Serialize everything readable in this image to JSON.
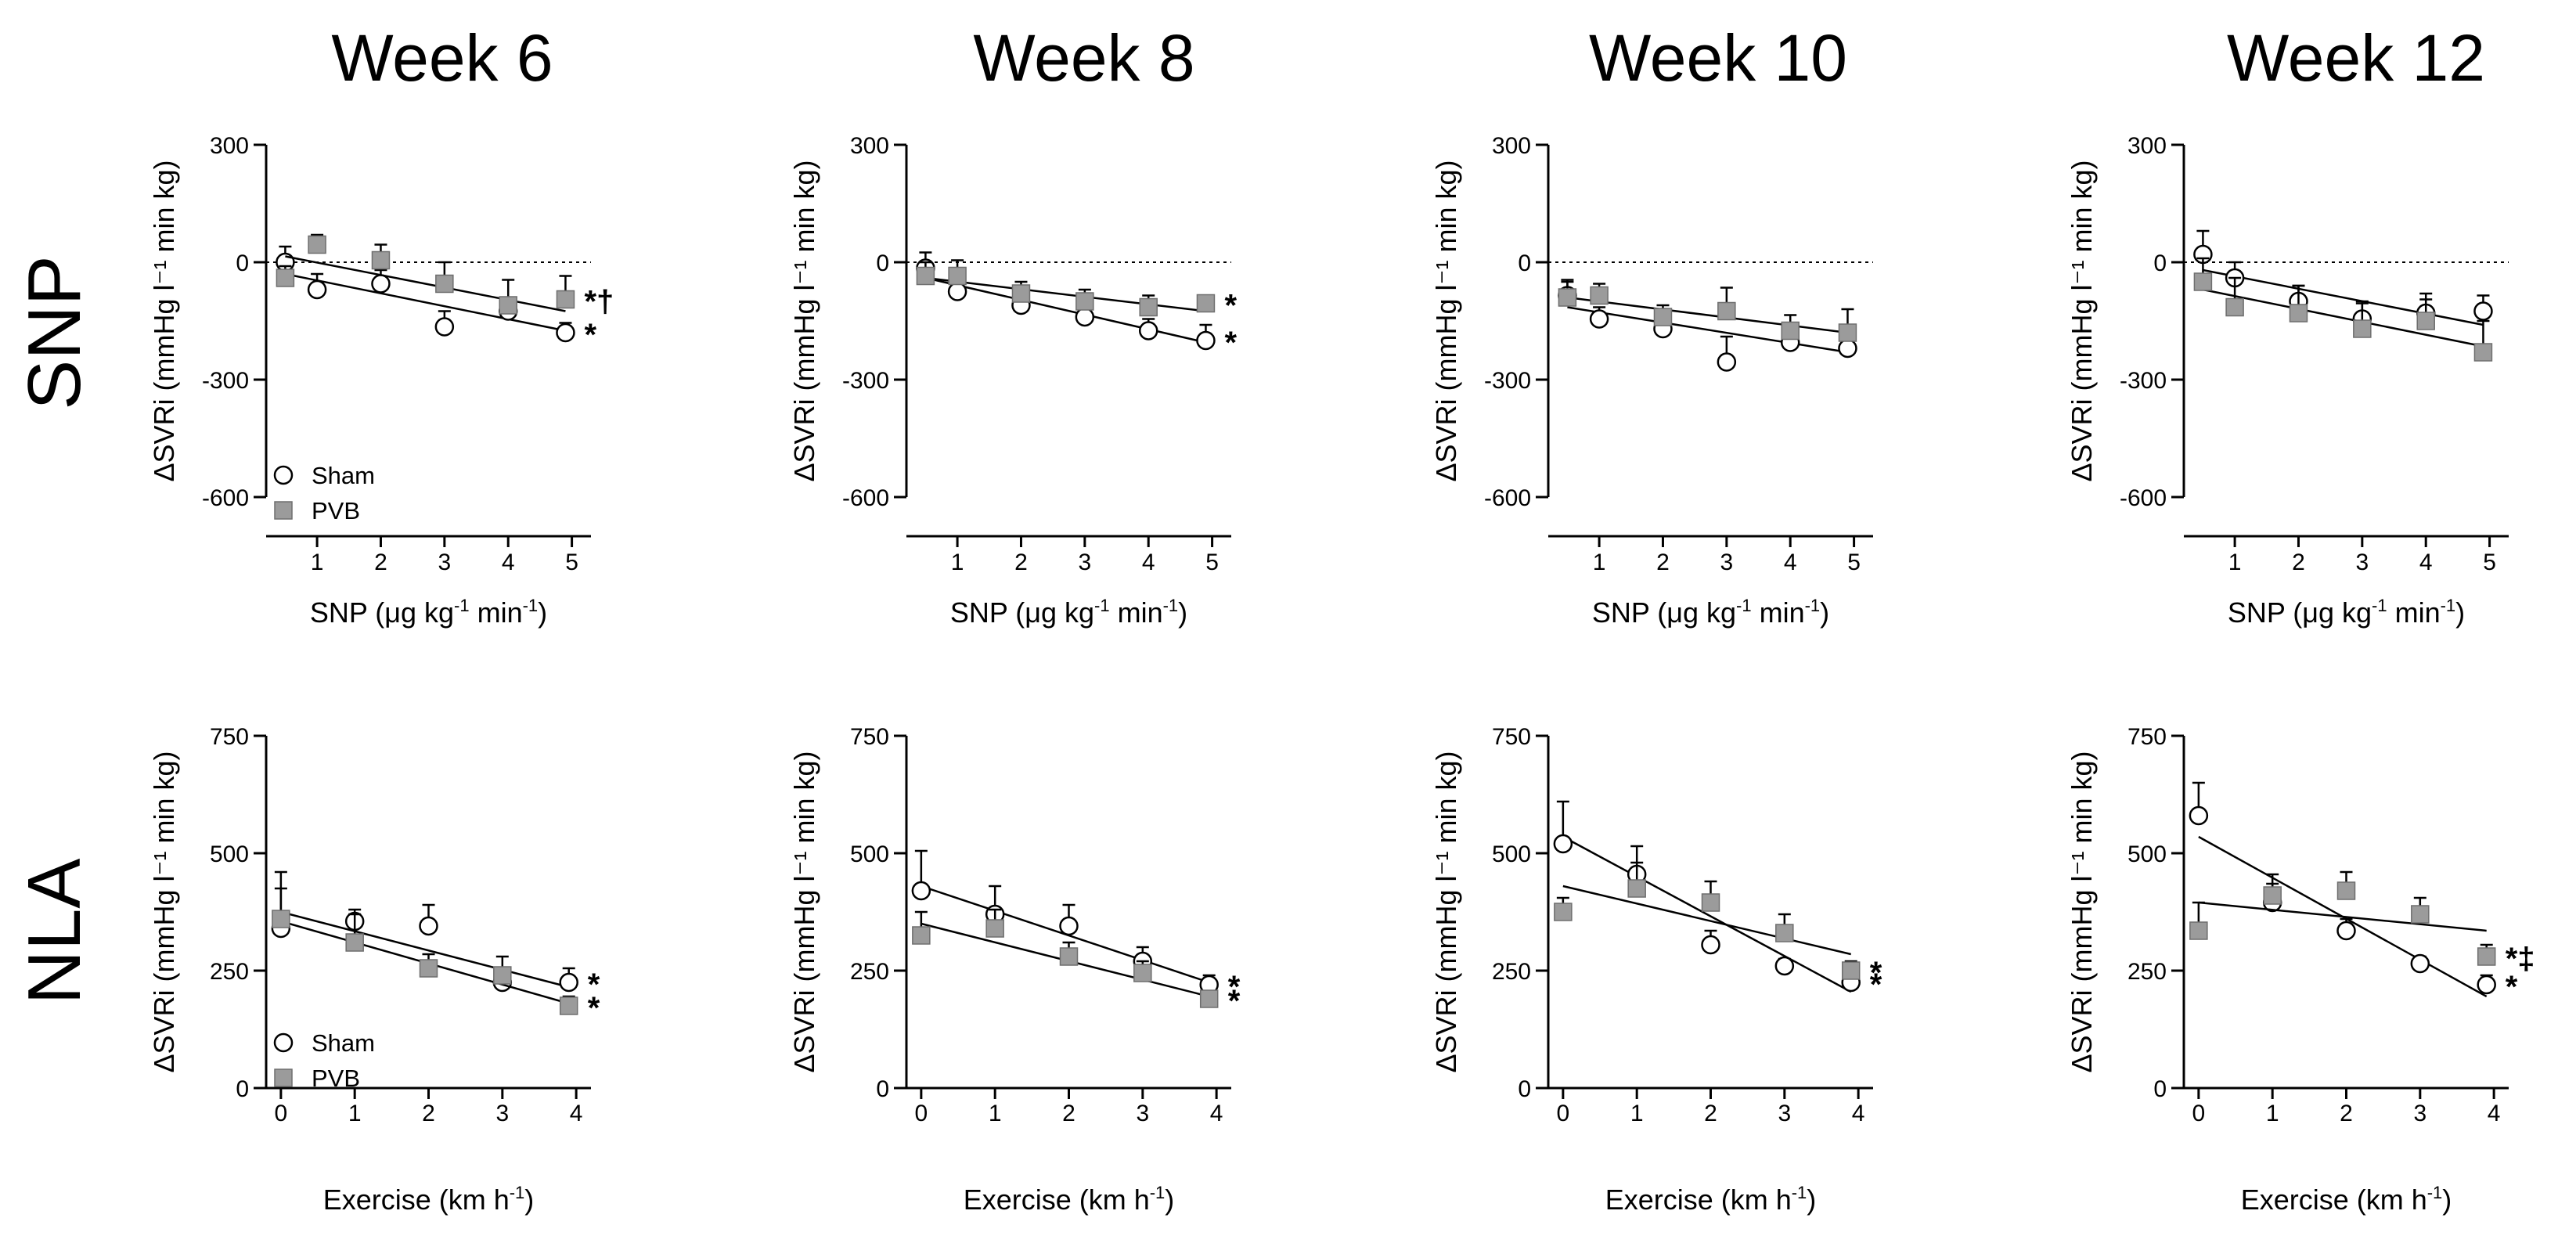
{
  "colors": {
    "sham_fill": "#ffffff",
    "pvb_fill": "#9b9b9b",
    "stroke": "#000000"
  },
  "series_names": [
    "Sham",
    "PVB"
  ],
  "columns": [
    {
      "title": "Week 6"
    },
    {
      "title": "Week 8"
    },
    {
      "title": "Week 10"
    },
    {
      "title": "Week 12"
    }
  ],
  "rows": [
    {
      "label": "SNP",
      "xlabel": {
        "pre": "SNP (",
        "mu": "μ",
        "mid": "g kg",
        "sup": "-1",
        "post": " min",
        "sup2": "-1",
        "end": ")"
      },
      "ylabel": "ΔSVRi (mmHg l⁻¹ min kg)",
      "x_ticks": [
        1,
        2,
        3,
        4,
        5
      ],
      "y_ticks": [
        300,
        0,
        -300,
        -600
      ],
      "xlim": [
        0.2,
        5.3
      ],
      "ylim": [
        -600,
        300
      ]
    },
    {
      "label": "NLA",
      "xlabel": {
        "pre": "Exercise (km h",
        "sup": "-1",
        "end": ")"
      },
      "ylabel": "ΔSVRi (mmHg l⁻¹ min kg)",
      "x_ticks": [
        0,
        1,
        2,
        3,
        4
      ],
      "y_ticks": [
        750,
        500,
        250,
        0
      ],
      "xlim": [
        -0.2,
        4.2
      ],
      "ylim": [
        0,
        750
      ]
    }
  ],
  "chart_data": [
    {
      "type": "scatter",
      "title": "Week 6",
      "row": "SNP",
      "xlabel": "SNP (μg kg-1 min-1)",
      "ylabel": "ΔSVRi (mmHg l-1 min kg)",
      "xlim": [
        0.2,
        5.3
      ],
      "ylim": [
        -600,
        300
      ],
      "reference_line_y": 0,
      "legend": [
        "Sham",
        "PVB"
      ],
      "series": [
        {
          "name": "Sham",
          "marker": "circle",
          "x": [
            0.5,
            1,
            2,
            3,
            4,
            4.9
          ],
          "y": [
            0,
            -70,
            -55,
            -165,
            -125,
            -180
          ],
          "err": [
            40,
            40,
            35,
            40,
            35,
            25
          ],
          "fit": {
            "x": [
              0.5,
              4.9
            ],
            "y": [
              -30,
              -175
            ]
          },
          "annotation": "*"
        },
        {
          "name": "PVB",
          "marker": "square",
          "x": [
            0.5,
            1,
            2,
            3,
            4,
            4.9
          ],
          "y": [
            -40,
            45,
            5,
            -55,
            -110,
            -95
          ],
          "err": [
            30,
            25,
            40,
            55,
            65,
            60
          ],
          "fit": {
            "x": [
              0.5,
              4.9
            ],
            "y": [
              15,
              -125
            ]
          },
          "annotation": "*†"
        }
      ]
    },
    {
      "type": "scatter",
      "title": "Week 8",
      "row": "SNP",
      "xlabel": "SNP (μg kg-1 min-1)",
      "ylabel": "ΔSVRi (mmHg l-1 min kg)",
      "xlim": [
        0.2,
        5.3
      ],
      "ylim": [
        -600,
        300
      ],
      "reference_line_y": 0,
      "series": [
        {
          "name": "Sham",
          "marker": "circle",
          "x": [
            0.5,
            1,
            2,
            3,
            4,
            4.9
          ],
          "y": [
            -15,
            -75,
            -110,
            -140,
            -175,
            -200
          ],
          "err": [
            40,
            40,
            40,
            30,
            30,
            40
          ],
          "fit": {
            "x": [
              0.5,
              4.9
            ],
            "y": [
              -40,
              -205
            ]
          },
          "annotation": "*"
        },
        {
          "name": "PVB",
          "marker": "square",
          "x": [
            0.5,
            1,
            2,
            3,
            4,
            4.9
          ],
          "y": [
            -35,
            -35,
            -80,
            -100,
            -115,
            -105
          ],
          "err": [
            35,
            40,
            30,
            30,
            30,
            20
          ],
          "fit": {
            "x": [
              0.5,
              4.9
            ],
            "y": [
              -40,
              -125
            ]
          },
          "annotation": "*"
        }
      ]
    },
    {
      "type": "scatter",
      "title": "Week 10",
      "row": "SNP",
      "xlabel": "SNP (μg kg-1 min-1)",
      "ylabel": "ΔSVRi (mmHg l-1 min kg)",
      "xlim": [
        0.2,
        5.3
      ],
      "ylim": [
        -600,
        300
      ],
      "reference_line_y": 0,
      "series": [
        {
          "name": "Sham",
          "marker": "circle",
          "x": [
            0.5,
            1,
            2,
            3,
            4,
            4.9
          ],
          "y": [
            -85,
            -145,
            -170,
            -255,
            -205,
            -220
          ],
          "err": [
            40,
            30,
            30,
            65,
            30,
            55
          ],
          "fit": {
            "x": [
              0.5,
              4.9
            ],
            "y": [
              -115,
              -230
            ]
          }
        },
        {
          "name": "PVB",
          "marker": "square",
          "x": [
            0.5,
            1,
            2,
            3,
            4,
            4.9
          ],
          "y": [
            -90,
            -85,
            -140,
            -125,
            -175,
            -180
          ],
          "err": [
            40,
            30,
            30,
            60,
            40,
            60
          ],
          "fit": {
            "x": [
              0.5,
              4.9
            ],
            "y": [
              -90,
              -180
            ]
          }
        }
      ]
    },
    {
      "type": "scatter",
      "title": "Week 12",
      "row": "SNP",
      "xlabel": "SNP (μg kg-1 min-1)",
      "ylabel": "ΔSVRi (mmHg l-1 min kg)",
      "xlim": [
        0.2,
        5.3
      ],
      "ylim": [
        -600,
        300
      ],
      "reference_line_y": 0,
      "series": [
        {
          "name": "Sham",
          "marker": "circle",
          "x": [
            0.5,
            1,
            2,
            3,
            4,
            4.9
          ],
          "y": [
            20,
            -40,
            -100,
            -145,
            -130,
            -125
          ],
          "err": [
            60,
            40,
            40,
            40,
            35,
            40
          ],
          "fit": {
            "x": [
              0.5,
              4.9
            ],
            "y": [
              -20,
              -160
            ]
          }
        },
        {
          "name": "PVB",
          "marker": "square",
          "x": [
            0.5,
            1,
            2,
            3,
            4,
            4.9
          ],
          "y": [
            -50,
            -115,
            -130,
            -170,
            -150,
            -230
          ],
          "err": [
            60,
            75,
            70,
            70,
            70,
            80
          ],
          "fit": {
            "x": [
              0.5,
              4.9
            ],
            "y": [
              -70,
              -215
            ]
          }
        }
      ]
    },
    {
      "type": "scatter",
      "title": "Week 6",
      "row": "NLA",
      "xlabel": "Exercise (km h-1)",
      "ylabel": "ΔSVRi (mmHg l-1 min kg)",
      "xlim": [
        -0.2,
        4.2
      ],
      "ylim": [
        0,
        750
      ],
      "legend": [
        "Sham",
        "PVB"
      ],
      "series": [
        {
          "name": "Sham",
          "marker": "circle",
          "x": [
            0,
            1,
            2,
            3,
            3.9
          ],
          "y": [
            340,
            355,
            345,
            225,
            225
          ],
          "err": [
            85,
            25,
            45,
            30,
            30
          ],
          "fit": {
            "x": [
              0,
              3.9
            ],
            "y": [
              375,
              215
            ]
          },
          "annotation": "*"
        },
        {
          "name": "PVB",
          "marker": "square",
          "x": [
            0,
            1,
            2,
            3,
            3.9
          ],
          "y": [
            360,
            310,
            255,
            240,
            175
          ],
          "err": [
            100,
            60,
            30,
            40,
            20
          ],
          "fit": {
            "x": [
              0,
              3.9
            ],
            "y": [
              355,
              180
            ]
          },
          "annotation": "*"
        }
      ]
    },
    {
      "type": "scatter",
      "title": "Week 8",
      "row": "NLA",
      "xlabel": "Exercise (km h-1)",
      "ylabel": "ΔSVRi (mmHg l-1 min kg)",
      "xlim": [
        -0.2,
        4.2
      ],
      "ylim": [
        0,
        750
      ],
      "series": [
        {
          "name": "Sham",
          "marker": "circle",
          "x": [
            0,
            1,
            2,
            3,
            3.9
          ],
          "y": [
            420,
            370,
            345,
            270,
            220
          ],
          "err": [
            85,
            60,
            45,
            30,
            20
          ],
          "fit": {
            "x": [
              0,
              3.9
            ],
            "y": [
              430,
              225
            ]
          },
          "annotation": "*"
        },
        {
          "name": "PVB",
          "marker": "square",
          "x": [
            0,
            1,
            2,
            3,
            3.9
          ],
          "y": [
            325,
            340,
            280,
            245,
            190
          ],
          "err": [
            50,
            40,
            30,
            25,
            15
          ],
          "fit": {
            "x": [
              0,
              3.9
            ],
            "y": [
              350,
              195
            ]
          },
          "annotation": "*"
        }
      ]
    },
    {
      "type": "scatter",
      "title": "Week 10",
      "row": "NLA",
      "xlabel": "Exercise (km h-1)",
      "ylabel": "ΔSVRi (mmHg l-1 min kg)",
      "xlim": [
        -0.2,
        4.2
      ],
      "ylim": [
        0,
        750
      ],
      "series": [
        {
          "name": "Sham",
          "marker": "circle",
          "x": [
            0,
            1,
            2,
            3,
            3.9
          ],
          "y": [
            520,
            455,
            305,
            260,
            225
          ],
          "err": [
            90,
            60,
            30,
            15,
            15
          ],
          "fit": {
            "x": [
              0,
              3.9
            ],
            "y": [
              535,
              205
            ]
          },
          "annotation": "*"
        },
        {
          "name": "PVB",
          "marker": "square",
          "x": [
            0,
            1,
            2,
            3,
            3.9
          ],
          "y": [
            375,
            425,
            395,
            330,
            250
          ],
          "err": [
            30,
            55,
            45,
            40,
            20
          ],
          "fit": {
            "x": [
              0,
              3.9
            ],
            "y": [
              430,
              285
            ]
          },
          "annotation": "*"
        }
      ]
    },
    {
      "type": "scatter",
      "title": "Week 12",
      "row": "NLA",
      "xlabel": "Exercise (km h-1)",
      "ylabel": "ΔSVRi (mmHg l-1 min kg)",
      "xlim": [
        -0.2,
        4.2
      ],
      "ylim": [
        0,
        750
      ],
      "series": [
        {
          "name": "Sham",
          "marker": "circle",
          "x": [
            0,
            1,
            2,
            3,
            3.9
          ],
          "y": [
            580,
            395,
            335,
            265,
            220
          ],
          "err": [
            70,
            40,
            25,
            15,
            20
          ],
          "fit": {
            "x": [
              0,
              3.9
            ],
            "y": [
              535,
              195
            ]
          },
          "annotation": "*"
        },
        {
          "name": "PVB",
          "marker": "square",
          "x": [
            0,
            1,
            2,
            3,
            3.9
          ],
          "y": [
            335,
            410,
            420,
            370,
            280
          ],
          "err": [
            60,
            45,
            40,
            35,
            25
          ],
          "fit": {
            "x": [
              0,
              3.9
            ],
            "y": [
              395,
              335
            ]
          },
          "annotation": "*‡"
        }
      ]
    }
  ]
}
